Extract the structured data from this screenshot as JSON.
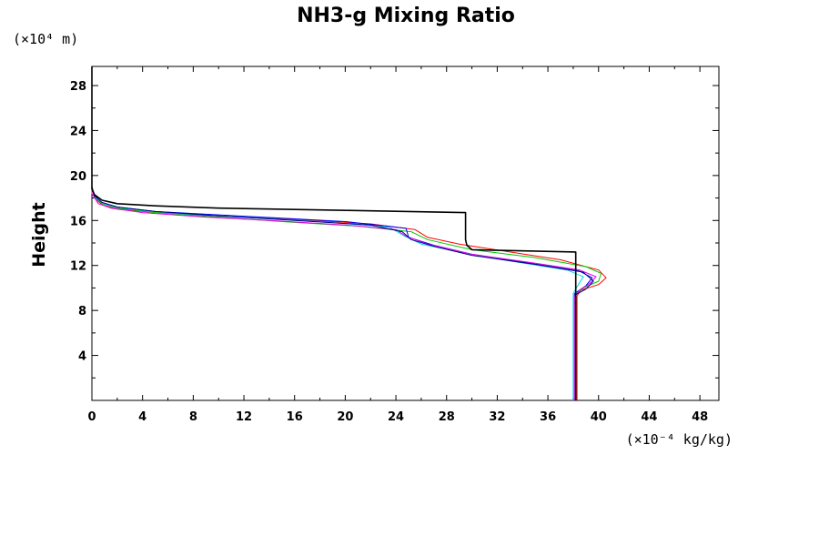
{
  "chart_data": {
    "type": "line",
    "title": "NH3-g Mixing Ratio",
    "ylabel": "Height",
    "xunit": "(×10⁻⁴ kg/kg)",
    "yunit": "(×10⁴ m)",
    "xlim": [
      0,
      49.5
    ],
    "ylim": [
      0,
      29.7
    ],
    "xticks": [
      {
        "value": 0,
        "label": "0"
      },
      {
        "value": 4,
        "label": "4"
      },
      {
        "value": 8,
        "label": "8"
      },
      {
        "value": 12,
        "label": "12"
      },
      {
        "value": 16,
        "label": "16"
      },
      {
        "value": 20,
        "label": "20"
      },
      {
        "value": 24,
        "label": "24"
      },
      {
        "value": 28,
        "label": "28"
      },
      {
        "value": 32,
        "label": "32"
      },
      {
        "value": 36,
        "label": "36"
      },
      {
        "value": 40,
        "label": "40"
      },
      {
        "value": 44,
        "label": "44"
      },
      {
        "value": 48,
        "label": "48"
      }
    ],
    "yticks": [
      {
        "value": 4,
        "label": "4"
      },
      {
        "value": 8,
        "label": "8"
      },
      {
        "value": 12,
        "label": "12"
      },
      {
        "value": 16,
        "label": "16"
      },
      {
        "value": 20,
        "label": "20"
      },
      {
        "value": 24,
        "label": "24"
      },
      {
        "value": 28,
        "label": "28"
      }
    ],
    "grid": false,
    "series": [
      {
        "color": "#000000",
        "width": 1.6,
        "points": [
          [
            38.2,
            0
          ],
          [
            38.2,
            5
          ],
          [
            38.2,
            10
          ],
          [
            38.2,
            13.2
          ],
          [
            30,
            13.4
          ],
          [
            29.6,
            13.8
          ],
          [
            29.5,
            14.3
          ],
          [
            29.5,
            16.7
          ],
          [
            20,
            16.9
          ],
          [
            10,
            17.1
          ],
          [
            5,
            17.3
          ],
          [
            2,
            17.5
          ],
          [
            0.8,
            17.8
          ],
          [
            0.2,
            18.3
          ],
          [
            0,
            18.8
          ],
          [
            0,
            29.7
          ]
        ]
      },
      {
        "color": "#ff0000",
        "width": 1,
        "points": [
          [
            38.3,
            0
          ],
          [
            38.3,
            5
          ],
          [
            38.3,
            9.3
          ],
          [
            38.6,
            9.8
          ],
          [
            40,
            10.3
          ],
          [
            40.6,
            10.9
          ],
          [
            40,
            11.6
          ],
          [
            37,
            12.5
          ],
          [
            33,
            13.2
          ],
          [
            29,
            13.9
          ],
          [
            26.5,
            14.5
          ],
          [
            25.5,
            15.2
          ],
          [
            22,
            15.7
          ],
          [
            16,
            16.1
          ],
          [
            10,
            16.4
          ],
          [
            5,
            16.7
          ],
          [
            2,
            17
          ],
          [
            0.8,
            17.4
          ],
          [
            0.2,
            18
          ],
          [
            0,
            19
          ],
          [
            0,
            29.7
          ]
        ]
      },
      {
        "color": "#00c800",
        "width": 1,
        "points": [
          [
            38.2,
            0
          ],
          [
            38.2,
            5
          ],
          [
            38.2,
            9.4
          ],
          [
            38.8,
            10
          ],
          [
            40,
            10.6
          ],
          [
            40.2,
            11.3
          ],
          [
            39,
            11.9
          ],
          [
            35,
            12.7
          ],
          [
            30,
            13.4
          ],
          [
            26.5,
            14.3
          ],
          [
            25.2,
            15
          ],
          [
            21,
            15.5
          ],
          [
            15,
            15.9
          ],
          [
            10,
            16.3
          ],
          [
            5,
            16.7
          ],
          [
            2,
            17.1
          ],
          [
            0.8,
            17.5
          ],
          [
            0.2,
            18.1
          ],
          [
            0,
            19
          ],
          [
            0,
            29.7
          ]
        ]
      },
      {
        "color": "#0000ff",
        "width": 1,
        "points": [
          [
            38.1,
            0
          ],
          [
            38.1,
            5
          ],
          [
            38.1,
            9.5
          ],
          [
            39,
            10.2
          ],
          [
            39.5,
            10.9
          ],
          [
            38.5,
            11.5
          ],
          [
            34,
            12.3
          ],
          [
            30,
            13
          ],
          [
            27,
            13.8
          ],
          [
            25,
            14.5
          ],
          [
            24.8,
            15.3
          ],
          [
            20,
            15.9
          ],
          [
            15,
            16.2
          ],
          [
            10,
            16.5
          ],
          [
            5,
            16.8
          ],
          [
            2,
            17.2
          ],
          [
            0.8,
            17.6
          ],
          [
            0.2,
            18.2
          ],
          [
            0,
            19
          ],
          [
            0,
            29.7
          ]
        ]
      },
      {
        "color": "#00dcdc",
        "width": 1,
        "points": [
          [
            38,
            0
          ],
          [
            38,
            5
          ],
          [
            38,
            9.5
          ],
          [
            38.4,
            10.3
          ],
          [
            38.8,
            11
          ],
          [
            37.5,
            11.6
          ],
          [
            33,
            12.4
          ],
          [
            29,
            13.2
          ],
          [
            26,
            13.9
          ],
          [
            24.7,
            14.6
          ],
          [
            23.5,
            15.4
          ],
          [
            18,
            15.9
          ],
          [
            12,
            16.3
          ],
          [
            7,
            16.6
          ],
          [
            3,
            17
          ],
          [
            1,
            17.4
          ],
          [
            0.3,
            18
          ],
          [
            0,
            19
          ],
          [
            0,
            29.7
          ]
        ]
      },
      {
        "color": "#e600e6",
        "width": 1,
        "points": [
          [
            38.1,
            0
          ],
          [
            38.1,
            5
          ],
          [
            38.1,
            9.2
          ],
          [
            38.5,
            9.8
          ],
          [
            39.3,
            10.4
          ],
          [
            39.8,
            11
          ],
          [
            38.5,
            11.6
          ],
          [
            35,
            12.2
          ],
          [
            30,
            13
          ],
          [
            26.5,
            13.9
          ],
          [
            24.8,
            14.6
          ],
          [
            24,
            15.2
          ],
          [
            20,
            15.6
          ],
          [
            14,
            16
          ],
          [
            9,
            16.3
          ],
          [
            4,
            16.7
          ],
          [
            1.5,
            17.1
          ],
          [
            0.5,
            17.5
          ],
          [
            0,
            18.4
          ],
          [
            0,
            29.7
          ]
        ]
      },
      {
        "color": "#000080",
        "width": 1,
        "points": [
          [
            38.2,
            0
          ],
          [
            38.2,
            5
          ],
          [
            38.2,
            9.4
          ],
          [
            39,
            9.9
          ],
          [
            39.6,
            10.6
          ],
          [
            38.8,
            11.4
          ],
          [
            35,
            12.1
          ],
          [
            30,
            12.9
          ],
          [
            27,
            13.7
          ],
          [
            25.2,
            14.3
          ],
          [
            24.5,
            15
          ],
          [
            22,
            15.6
          ],
          [
            16,
            16
          ],
          [
            10,
            16.4
          ],
          [
            5,
            16.8
          ],
          [
            2,
            17.2
          ],
          [
            0.8,
            17.6
          ],
          [
            0.2,
            18.2
          ],
          [
            0,
            19
          ],
          [
            0,
            29.7
          ]
        ]
      }
    ]
  }
}
